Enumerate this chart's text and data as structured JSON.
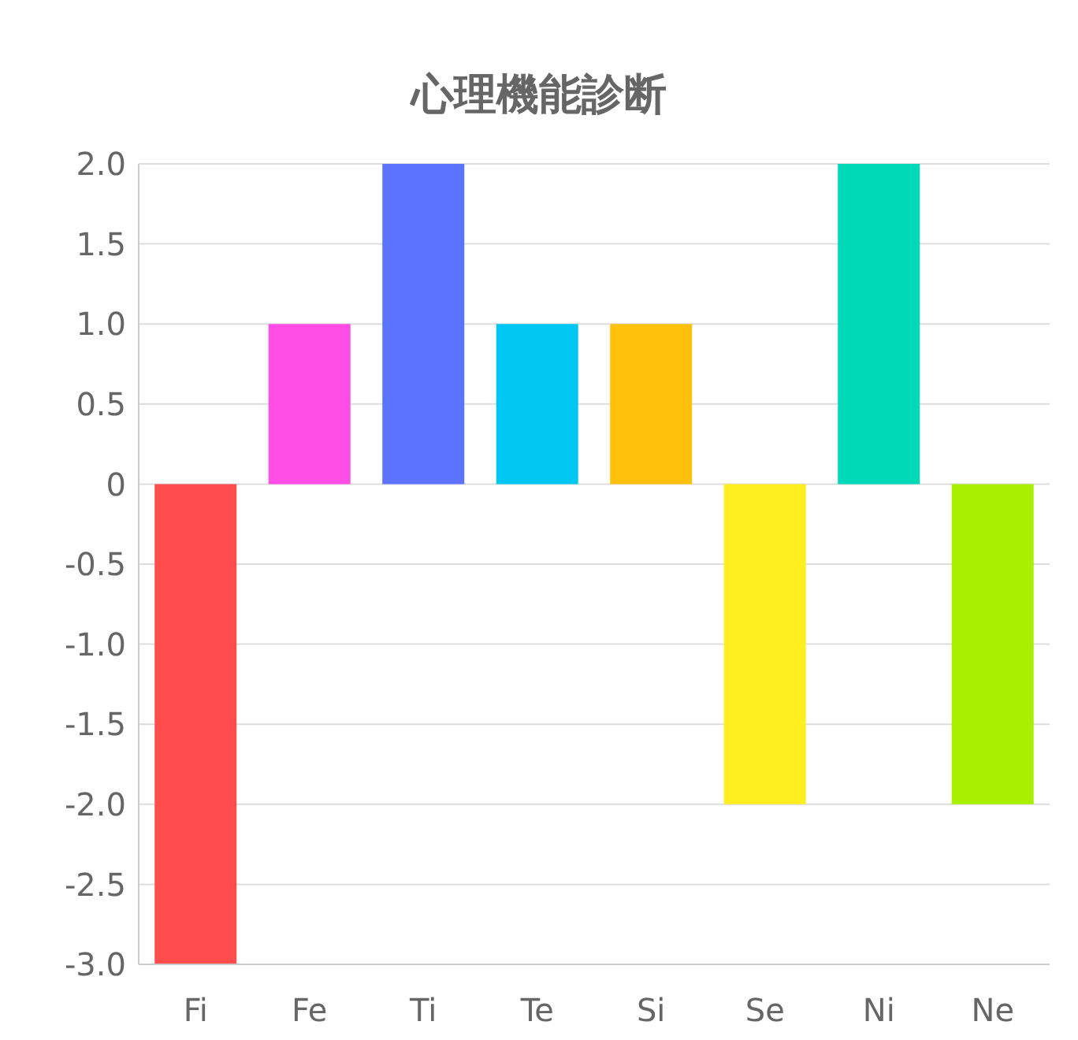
{
  "chart_data": {
    "type": "bar",
    "title": "心理機能診断",
    "categories": [
      "Fi",
      "Fe",
      "Ti",
      "Te",
      "Si",
      "Se",
      "Ni",
      "Ne"
    ],
    "values": [
      -3,
      1,
      2,
      1,
      1,
      -2,
      2,
      -2
    ],
    "colors": [
      "#ff4d4d",
      "#ff4de6",
      "#5b73ff",
      "#00c8f2",
      "#ffc10d",
      "#ffee22",
      "#00d9b8",
      "#a6f000"
    ],
    "ylim": [
      -3,
      2
    ],
    "yticks": [
      {
        "value": 2,
        "label": "2.0"
      },
      1.5,
      {
        "value": 1,
        "label": "1.0"
      },
      0.5,
      0,
      -0.5,
      {
        "value": -1,
        "label": "-1.0"
      },
      -1.5,
      {
        "value": -2,
        "label": "-2.0"
      },
      -2.5,
      {
        "value": -3,
        "label": "-3.0"
      }
    ],
    "grid": "y"
  }
}
